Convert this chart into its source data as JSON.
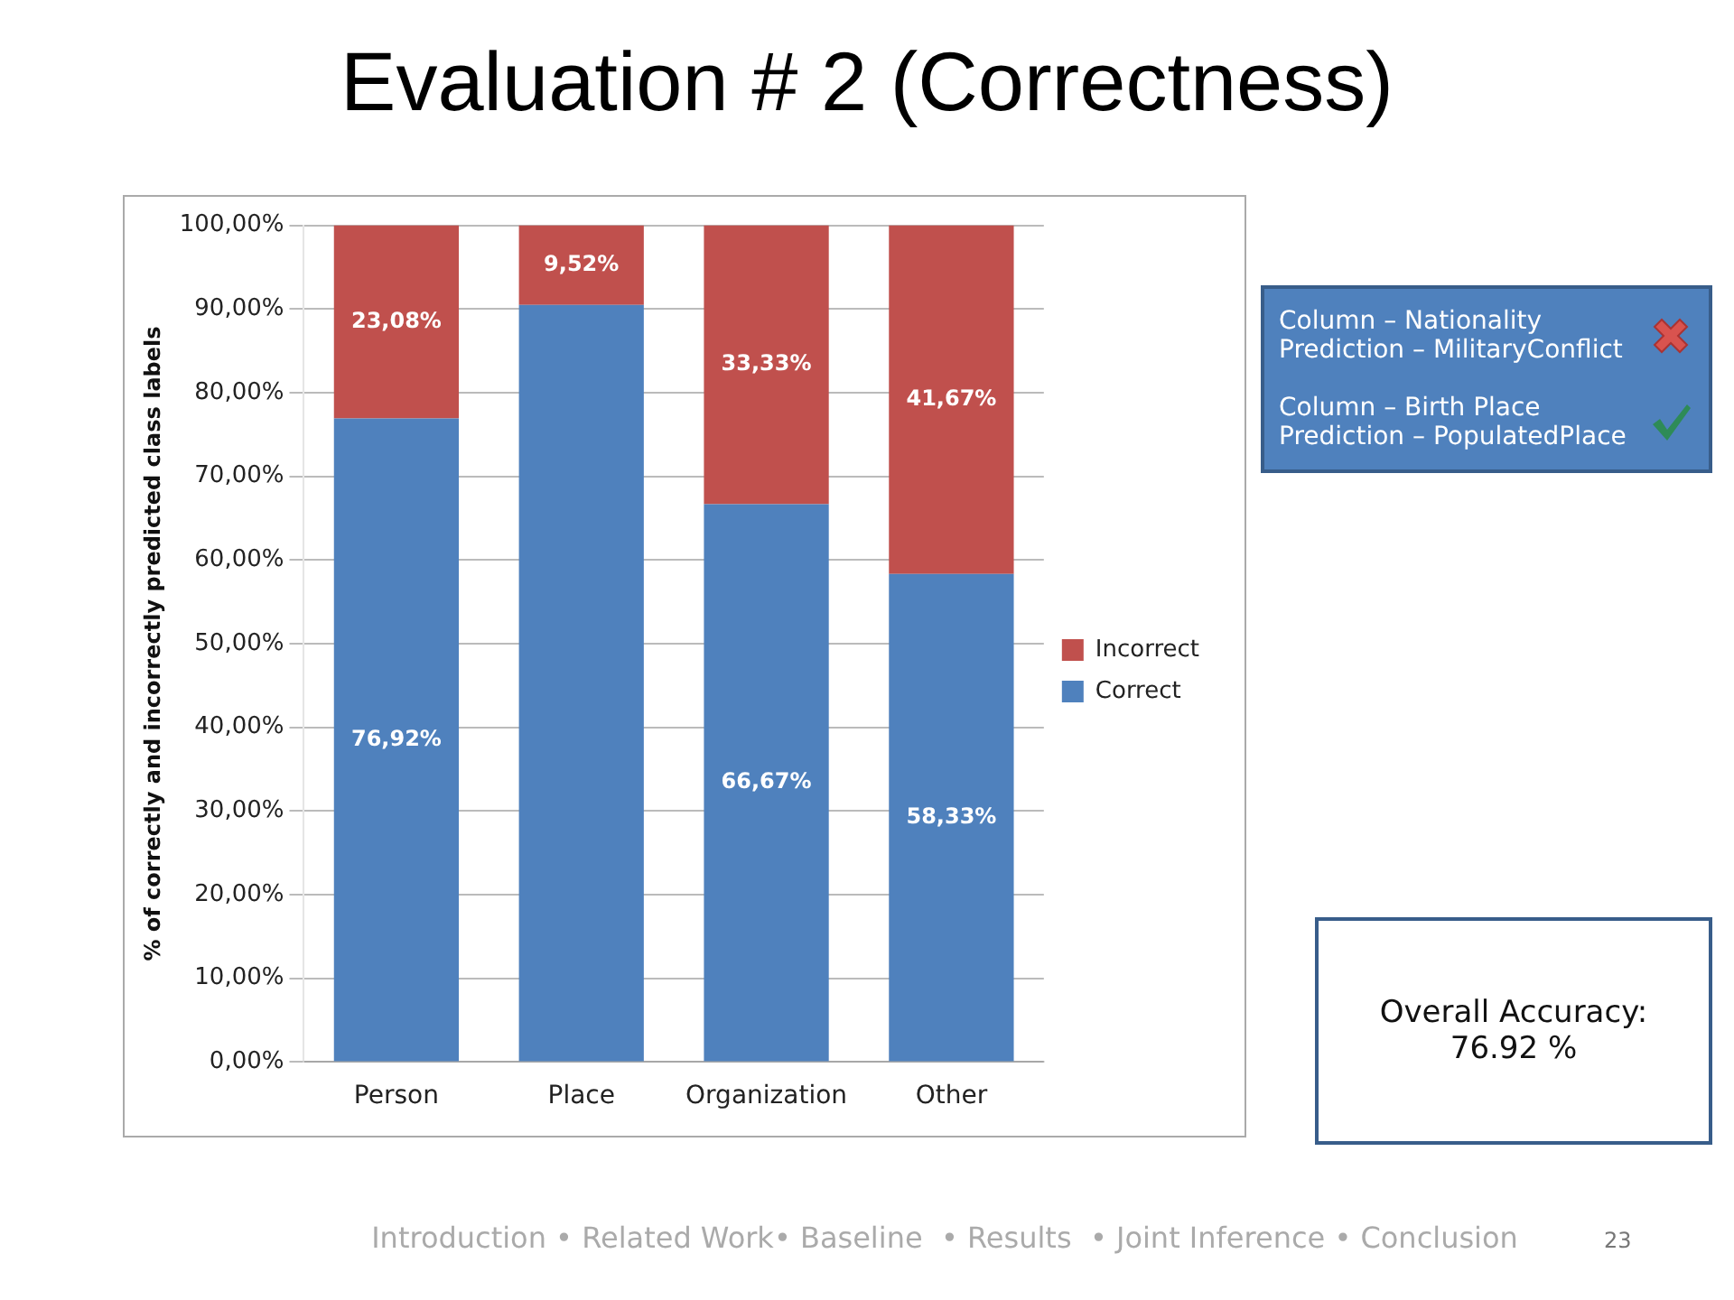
{
  "chart_data": {
    "type": "bar",
    "title": "Evaluation # 2 (Correctness)",
    "ylabel": "% of correctly and incorrectly predicted class labels",
    "categories": [
      "Person",
      "Place",
      "Organization",
      "Other"
    ],
    "stacked": true,
    "series": [
      {
        "name": "Correct",
        "color": "#4f81bd",
        "values": [
          76.92,
          90.5,
          66.67,
          58.33
        ],
        "value_labels": [
          "76,92%",
          null,
          "66,67%",
          "58,33%"
        ]
      },
      {
        "name": "Incorrect",
        "color": "#c0504d",
        "values": [
          23.08,
          9.52,
          33.33,
          41.67
        ],
        "value_labels": [
          "23,08%",
          "9,52%",
          "33,33%",
          "41,67%"
        ]
      }
    ],
    "ylim": [
      0,
      100
    ],
    "yticks": [
      {
        "value": 0,
        "label": "0,00%"
      },
      {
        "value": 10,
        "label": "10,00%"
      },
      {
        "value": 20,
        "label": "20,00%"
      },
      {
        "value": 30,
        "label": "30,00%"
      },
      {
        "value": 40,
        "label": "40,00%"
      },
      {
        "value": 50,
        "label": "50,00%"
      },
      {
        "value": 60,
        "label": "60,00%"
      },
      {
        "value": 70,
        "label": "70,00%"
      },
      {
        "value": 80,
        "label": "80,00%"
      },
      {
        "value": 90,
        "label": "90,00%"
      },
      {
        "value": 100,
        "label": "100,00%"
      }
    ],
    "grid": "y",
    "legend": "right",
    "annotations": [
      "Column – Nationality",
      "Prediction – MilitaryConflict",
      "Column – Birth Place",
      "Prediction – PopulatedPlace",
      "Overall Accuracy:",
      "76.92 %",
      "Introduction • Related Work• Baseline  • Results  • Joint Inference • Conclusion",
      "23"
    ]
  }
}
